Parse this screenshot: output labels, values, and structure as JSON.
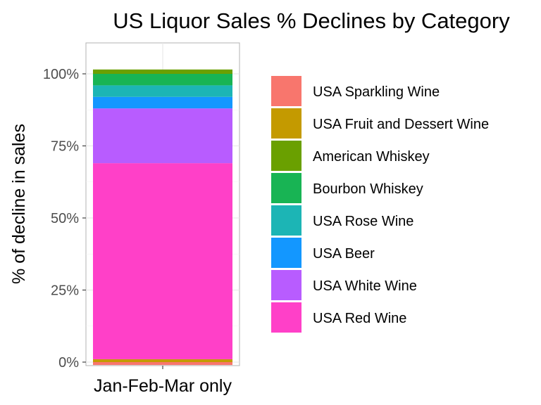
{
  "chart_data": {
    "type": "bar",
    "stacked": true,
    "title": "US Liquor Sales % Declines by Category",
    "xlabel": "",
    "ylabel": "% of decline in sales",
    "categories": [
      "Jan-Feb-Mar only"
    ],
    "yticks": [
      "0%",
      "25%",
      "50%",
      "75%",
      "100%"
    ],
    "ylim": [
      0,
      1.1
    ],
    "grid": true,
    "legend_position": "right",
    "series": [
      {
        "name": "USA Sparkling Wine",
        "color": "#F8766D",
        "values": [
          -0.01
        ]
      },
      {
        "name": "USA Fruit and Dessert Wine",
        "color": "#C49A00",
        "values": [
          0.01
        ]
      },
      {
        "name": "USA Red Wine",
        "color": "#FF40C8",
        "values": [
          0.68
        ]
      },
      {
        "name": "USA White Wine",
        "color": "#B85CFF",
        "values": [
          0.19
        ]
      },
      {
        "name": "USA Beer",
        "color": "#1397FF",
        "values": [
          0.04
        ]
      },
      {
        "name": "USA Rose Wine",
        "color": "#1CB5B5",
        "values": [
          0.04
        ]
      },
      {
        "name": "Bourbon Whiskey",
        "color": "#18B454",
        "values": [
          0.04
        ]
      },
      {
        "name": "American Whiskey",
        "color": "#6AA000",
        "values": [
          0.015
        ]
      }
    ],
    "legend_order": [
      "USA Sparkling Wine",
      "USA Fruit and Dessert Wine",
      "American Whiskey",
      "Bourbon Whiskey",
      "USA Rose Wine",
      "USA Beer",
      "USA White Wine",
      "USA Red Wine"
    ]
  }
}
